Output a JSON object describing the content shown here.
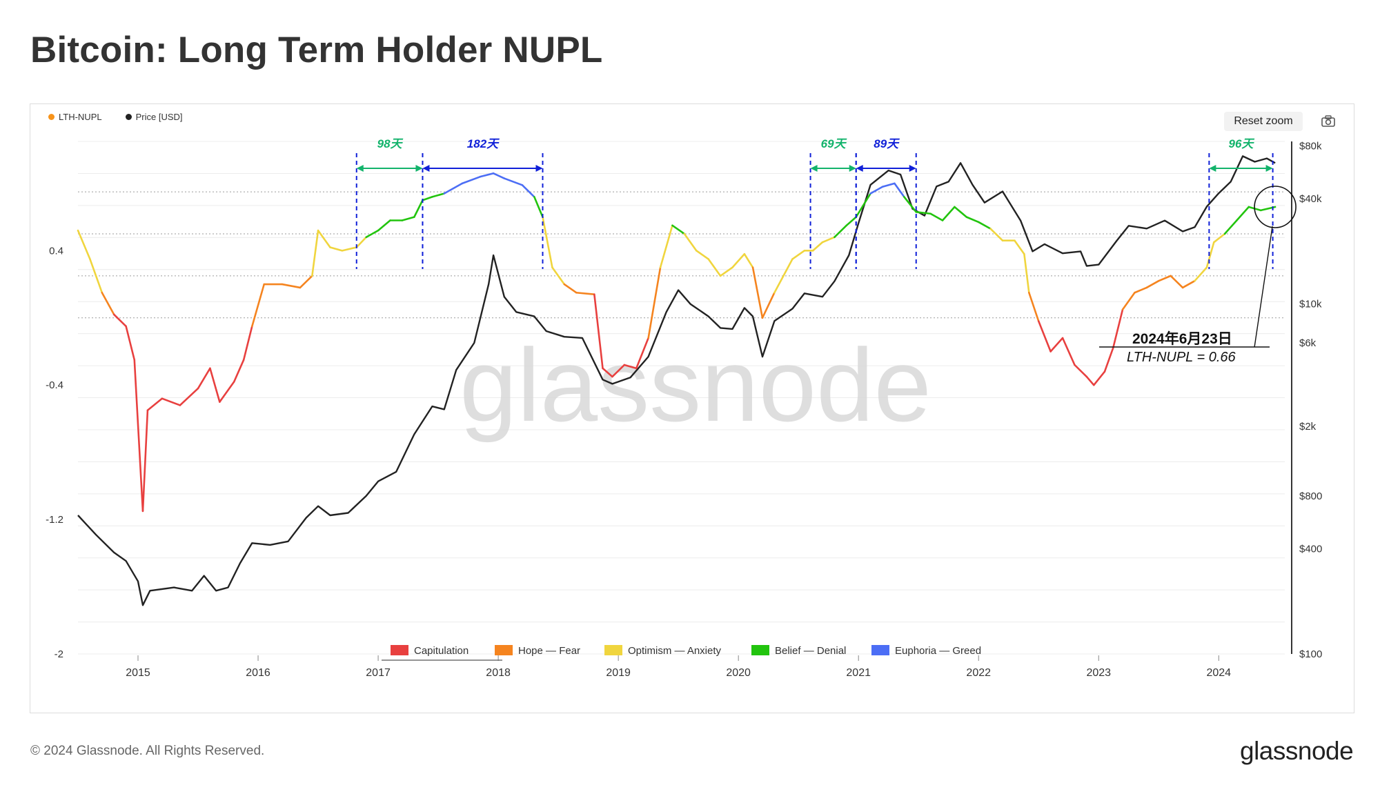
{
  "title": "Bitcoin: Long Term Holder NUPL",
  "toolbar": {
    "reset_zoom": "Reset zoom",
    "camera_icon": "camera-icon"
  },
  "footer": {
    "copyright": "© 2024 Glassnode. All Rights Reserved.",
    "logo": "glassnode"
  },
  "watermark": "glassnode",
  "colors": {
    "lth_nupl": "#f7931a",
    "price": "#222222",
    "capitulation": "#e8403f",
    "hope_fear": "#f5841f",
    "optimism_anxiety": "#f0d53e",
    "belief_denial": "#22c40e",
    "euphoria_greed": "#4c6ef5",
    "annotation_green": "#12b36b",
    "annotation_blue": "#1020d8"
  },
  "chart_data": {
    "type": "line",
    "legend_top": [
      {
        "name": "LTH-NUPL",
        "color": "#f7931a"
      },
      {
        "name": "Price [USD]",
        "color": "#222222"
      }
    ],
    "legend_bottom": [
      {
        "name": "Capitulation",
        "color": "#e8403f"
      },
      {
        "name": "Hope — Fear",
        "color": "#f5841f"
      },
      {
        "name": "Optimism — Anxiety",
        "color": "#f0d53e"
      },
      {
        "name": "Belief — Denial",
        "color": "#22c40e"
      },
      {
        "name": "Euphoria — Greed",
        "color": "#4c6ef5"
      }
    ],
    "x_ticks": [
      "2015",
      "2016",
      "2017",
      "2018",
      "2019",
      "2020",
      "2021",
      "2022",
      "2023",
      "2024"
    ],
    "x_range": [
      2014.5,
      2024.55
    ],
    "y_left": {
      "ticks": [
        0.4,
        -0.4,
        -1.2,
        -2
      ],
      "tick_labels": [
        "0.4",
        "-0.4",
        "-1.2",
        "-2"
      ],
      "range": [
        -2,
        1.05
      ]
    },
    "y_right": {
      "scale": "log",
      "ticks": [
        100,
        400,
        800,
        2000,
        6000,
        10000,
        40000,
        80000
      ],
      "tick_labels": [
        "$100",
        "$400",
        "$800",
        "$2k",
        "$6k",
        "$10k",
        "$40k",
        "$80k"
      ],
      "range": [
        100,
        85000
      ]
    },
    "series": [
      {
        "name": "LTH-NUPL",
        "points": [
          [
            2014.5,
            0.52
          ],
          [
            2014.6,
            0.35
          ],
          [
            2014.7,
            0.15
          ],
          [
            2014.8,
            0.02
          ],
          [
            2014.9,
            -0.05
          ],
          [
            2014.97,
            -0.25
          ],
          [
            2015.04,
            -1.15
          ],
          [
            2015.08,
            -0.55
          ],
          [
            2015.2,
            -0.48
          ],
          [
            2015.35,
            -0.52
          ],
          [
            2015.5,
            -0.42
          ],
          [
            2015.6,
            -0.3
          ],
          [
            2015.68,
            -0.5
          ],
          [
            2015.8,
            -0.38
          ],
          [
            2015.88,
            -0.25
          ],
          [
            2015.95,
            -0.05
          ],
          [
            2016.05,
            0.2
          ],
          [
            2016.2,
            0.2
          ],
          [
            2016.35,
            0.18
          ],
          [
            2016.45,
            0.25
          ],
          [
            2016.5,
            0.52
          ],
          [
            2016.6,
            0.42
          ],
          [
            2016.7,
            0.4
          ],
          [
            2016.82,
            0.42
          ],
          [
            2016.9,
            0.48
          ],
          [
            2017.0,
            0.52
          ],
          [
            2017.1,
            0.58
          ],
          [
            2017.2,
            0.58
          ],
          [
            2017.3,
            0.6
          ],
          [
            2017.37,
            0.7
          ],
          [
            2017.45,
            0.72
          ],
          [
            2017.55,
            0.74
          ],
          [
            2017.7,
            0.8
          ],
          [
            2017.85,
            0.84
          ],
          [
            2017.96,
            0.86
          ],
          [
            2018.05,
            0.83
          ],
          [
            2018.2,
            0.79
          ],
          [
            2018.3,
            0.72
          ],
          [
            2018.37,
            0.6
          ],
          [
            2018.45,
            0.3
          ],
          [
            2018.55,
            0.2
          ],
          [
            2018.65,
            0.15
          ],
          [
            2018.8,
            0.14
          ],
          [
            2018.87,
            -0.3
          ],
          [
            2018.95,
            -0.35
          ],
          [
            2019.05,
            -0.28
          ],
          [
            2019.15,
            -0.3
          ],
          [
            2019.25,
            -0.12
          ],
          [
            2019.35,
            0.3
          ],
          [
            2019.45,
            0.55
          ],
          [
            2019.55,
            0.5
          ],
          [
            2019.65,
            0.4
          ],
          [
            2019.75,
            0.35
          ],
          [
            2019.85,
            0.25
          ],
          [
            2019.95,
            0.3
          ],
          [
            2020.05,
            0.38
          ],
          [
            2020.12,
            0.3
          ],
          [
            2020.2,
            0.0
          ],
          [
            2020.3,
            0.15
          ],
          [
            2020.45,
            0.35
          ],
          [
            2020.55,
            0.4
          ],
          [
            2020.62,
            0.4
          ],
          [
            2020.7,
            0.45
          ],
          [
            2020.8,
            0.48
          ],
          [
            2020.9,
            0.55
          ],
          [
            2020.98,
            0.6
          ],
          [
            2021.1,
            0.74
          ],
          [
            2021.2,
            0.78
          ],
          [
            2021.3,
            0.8
          ],
          [
            2021.38,
            0.72
          ],
          [
            2021.48,
            0.63
          ],
          [
            2021.6,
            0.62
          ],
          [
            2021.7,
            0.58
          ],
          [
            2021.8,
            0.66
          ],
          [
            2021.9,
            0.6
          ],
          [
            2022.0,
            0.57
          ],
          [
            2022.1,
            0.53
          ],
          [
            2022.2,
            0.46
          ],
          [
            2022.3,
            0.46
          ],
          [
            2022.38,
            0.38
          ],
          [
            2022.42,
            0.15
          ],
          [
            2022.5,
            -0.02
          ],
          [
            2022.6,
            -0.2
          ],
          [
            2022.7,
            -0.12
          ],
          [
            2022.8,
            -0.28
          ],
          [
            2022.9,
            -0.35
          ],
          [
            2022.96,
            -0.4
          ],
          [
            2023.05,
            -0.32
          ],
          [
            2023.12,
            -0.18
          ],
          [
            2023.2,
            0.05
          ],
          [
            2023.3,
            0.15
          ],
          [
            2023.4,
            0.18
          ],
          [
            2023.5,
            0.22
          ],
          [
            2023.6,
            0.25
          ],
          [
            2023.7,
            0.18
          ],
          [
            2023.8,
            0.22
          ],
          [
            2023.9,
            0.3
          ],
          [
            2023.96,
            0.45
          ],
          [
            2024.05,
            0.5
          ],
          [
            2024.15,
            0.58
          ],
          [
            2024.25,
            0.66
          ],
          [
            2024.35,
            0.64
          ],
          [
            2024.47,
            0.66
          ]
        ]
      },
      {
        "name": "Price [USD]",
        "points": [
          [
            2014.5,
            620
          ],
          [
            2014.65,
            480
          ],
          [
            2014.8,
            380
          ],
          [
            2014.9,
            340
          ],
          [
            2015.0,
            260
          ],
          [
            2015.04,
            190
          ],
          [
            2015.1,
            230
          ],
          [
            2015.3,
            240
          ],
          [
            2015.45,
            230
          ],
          [
            2015.55,
            280
          ],
          [
            2015.65,
            230
          ],
          [
            2015.75,
            240
          ],
          [
            2015.85,
            330
          ],
          [
            2015.95,
            430
          ],
          [
            2016.1,
            420
          ],
          [
            2016.25,
            440
          ],
          [
            2016.4,
            600
          ],
          [
            2016.5,
            700
          ],
          [
            2016.6,
            620
          ],
          [
            2016.75,
            640
          ],
          [
            2016.9,
            800
          ],
          [
            2017.0,
            970
          ],
          [
            2017.15,
            1100
          ],
          [
            2017.3,
            1800
          ],
          [
            2017.45,
            2600
          ],
          [
            2017.55,
            2500
          ],
          [
            2017.65,
            4200
          ],
          [
            2017.8,
            6000
          ],
          [
            2017.92,
            13000
          ],
          [
            2017.96,
            19000
          ],
          [
            2018.05,
            11000
          ],
          [
            2018.15,
            9000
          ],
          [
            2018.3,
            8500
          ],
          [
            2018.4,
            7000
          ],
          [
            2018.55,
            6500
          ],
          [
            2018.7,
            6400
          ],
          [
            2018.87,
            3700
          ],
          [
            2018.95,
            3500
          ],
          [
            2019.1,
            3800
          ],
          [
            2019.25,
            5000
          ],
          [
            2019.4,
            9000
          ],
          [
            2019.5,
            12000
          ],
          [
            2019.6,
            10000
          ],
          [
            2019.75,
            8500
          ],
          [
            2019.85,
            7300
          ],
          [
            2019.95,
            7200
          ],
          [
            2020.05,
            9500
          ],
          [
            2020.12,
            8500
          ],
          [
            2020.2,
            5000
          ],
          [
            2020.3,
            8000
          ],
          [
            2020.45,
            9400
          ],
          [
            2020.55,
            11500
          ],
          [
            2020.7,
            11000
          ],
          [
            2020.8,
            13500
          ],
          [
            2020.92,
            19000
          ],
          [
            2021.0,
            29000
          ],
          [
            2021.1,
            48000
          ],
          [
            2021.25,
            58000
          ],
          [
            2021.35,
            55000
          ],
          [
            2021.45,
            35000
          ],
          [
            2021.55,
            32000
          ],
          [
            2021.65,
            47000
          ],
          [
            2021.75,
            50000
          ],
          [
            2021.85,
            64000
          ],
          [
            2021.95,
            48000
          ],
          [
            2022.05,
            38000
          ],
          [
            2022.2,
            44000
          ],
          [
            2022.35,
            30000
          ],
          [
            2022.45,
            20000
          ],
          [
            2022.55,
            22000
          ],
          [
            2022.7,
            19500
          ],
          [
            2022.85,
            20000
          ],
          [
            2022.9,
            16500
          ],
          [
            2023.0,
            16800
          ],
          [
            2023.15,
            23000
          ],
          [
            2023.25,
            28000
          ],
          [
            2023.4,
            27000
          ],
          [
            2023.55,
            30000
          ],
          [
            2023.7,
            26000
          ],
          [
            2023.8,
            27500
          ],
          [
            2023.9,
            36000
          ],
          [
            2024.0,
            43000
          ],
          [
            2024.1,
            50000
          ],
          [
            2024.2,
            70000
          ],
          [
            2024.3,
            65000
          ],
          [
            2024.4,
            68000
          ],
          [
            2024.47,
            64000
          ]
        ]
      }
    ],
    "annotations": [
      {
        "label": "98天",
        "color_key": "annotation_green",
        "x_start": 2016.82,
        "x_end": 2017.37
      },
      {
        "label": "182天",
        "color_key": "annotation_blue",
        "x_start": 2017.37,
        "x_end": 2018.37
      },
      {
        "label": "69天",
        "color_key": "annotation_green",
        "x_start": 2020.6,
        "x_end": 2020.98
      },
      {
        "label": "89天",
        "color_key": "annotation_blue",
        "x_start": 2020.98,
        "x_end": 2021.48
      },
      {
        "label": "96天",
        "color_key": "annotation_green",
        "x_start": 2023.92,
        "x_end": 2024.45
      }
    ],
    "callout": {
      "date": "2024年6月23日",
      "value": "LTH-NUPL = 0.66",
      "x": 2024.47
    }
  }
}
